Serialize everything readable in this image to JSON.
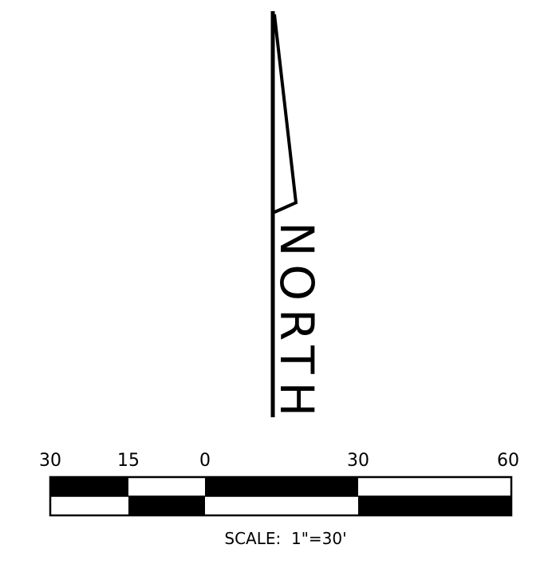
{
  "north_arrow": {
    "label": "NORTH"
  },
  "scale_bar": {
    "tick_labels": [
      "30",
      "15",
      "0",
      "30",
      "60"
    ],
    "scale_text": "SCALE:  1\"=30'"
  },
  "colors": {
    "ink": "#000000",
    "background": "#ffffff"
  }
}
